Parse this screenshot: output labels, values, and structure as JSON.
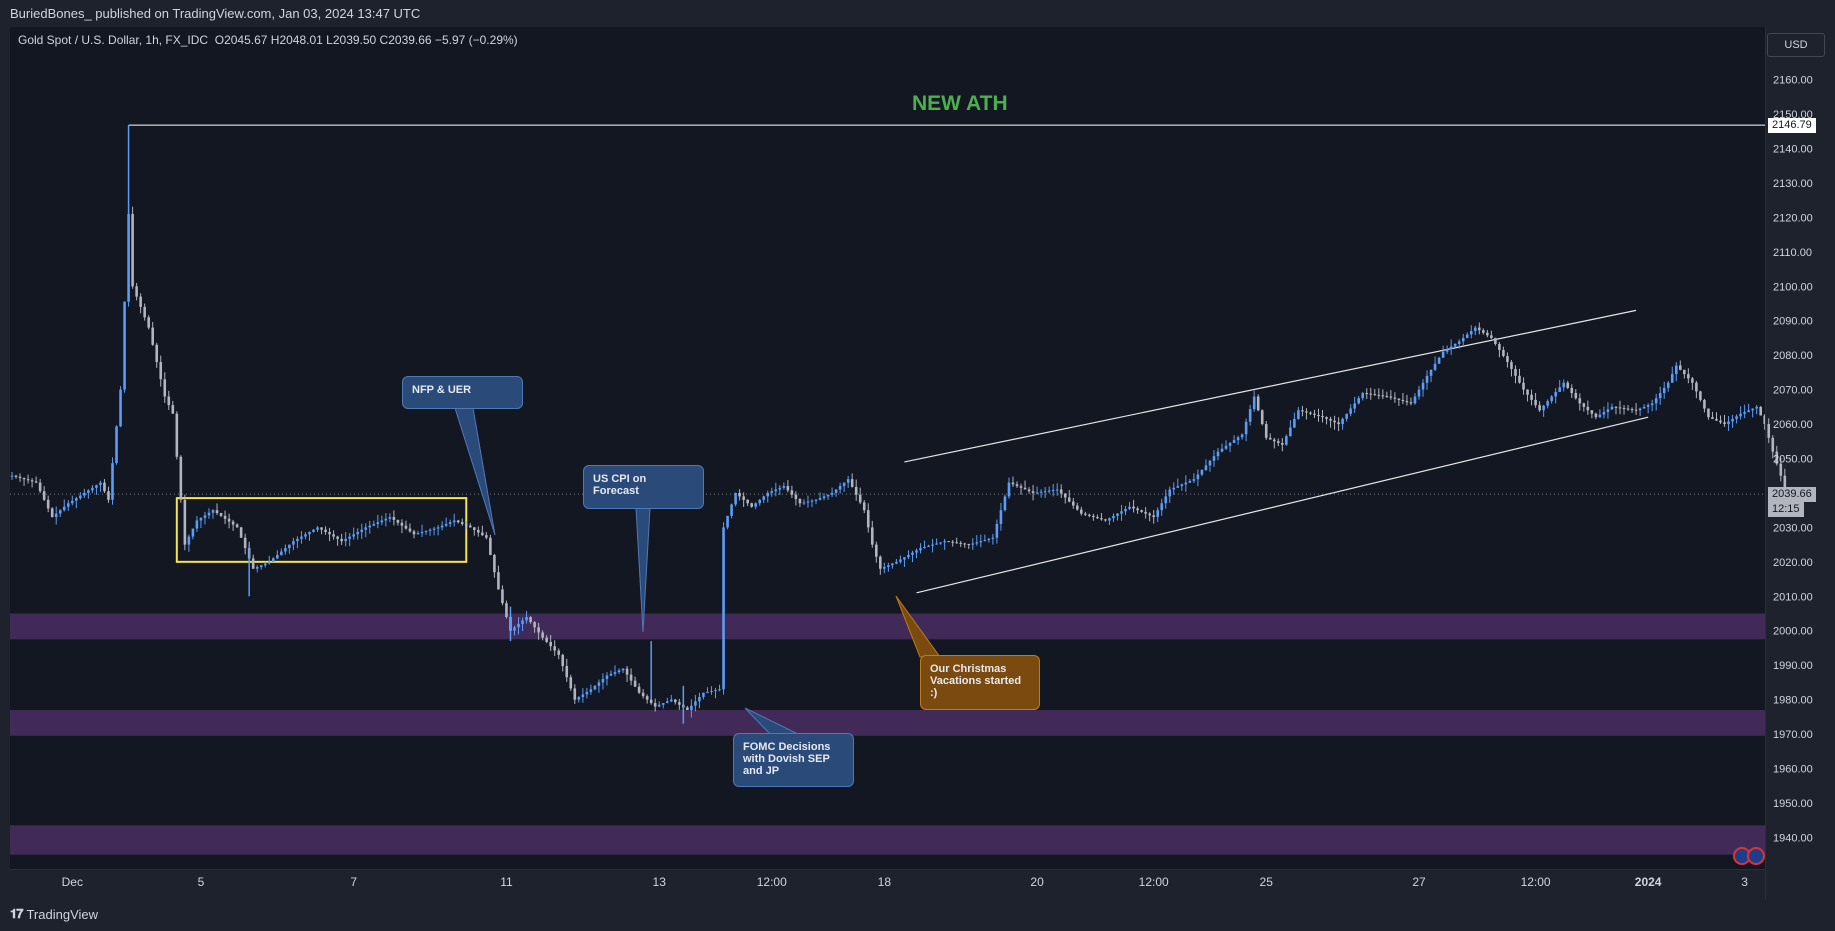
{
  "header": {
    "publish_info": "BuriedBones_ published on TradingView.com, Jan 03, 2024 13:47 UTC"
  },
  "legend": {
    "symbol": "Gold Spot / U.S. Dollar, 1h, FX_IDC",
    "ohlc": "O2045.67  H2048.01  L2039.50  C2039.66  −5.97 (−0.29%)"
  },
  "currency_button": "USD",
  "annotations": {
    "ath": "NEW ATH",
    "nfp": "NFP & UER",
    "cpi": "US CPI on Forecast",
    "fomc": "FOMC Decisions with Dovish SEP and JP",
    "christmas": "Our Christmas Vacations started :)"
  },
  "price_tags": {
    "ath_price": "2146.79",
    "last_price": "2039.66",
    "countdown": "12:15"
  },
  "brand": "TradingView",
  "colors": {
    "background": "#131722",
    "frame": "#1e222d",
    "candle": "#5b9cf6",
    "zone": "#4a2e62",
    "consolidation_box": "#f5e44b",
    "ath_text": "#4caf50",
    "grid_text": "#d1d4dc"
  },
  "chart_data": {
    "type": "candlestick-line",
    "symbol": "XAUUSD",
    "timeframe": "1h",
    "ylim": [
      1933,
      2167
    ],
    "yticks": [
      1940,
      1950,
      1960,
      1970,
      1980,
      1990,
      2000,
      2010,
      2020,
      2030,
      2040,
      2050,
      2060,
      2070,
      2080,
      2090,
      2100,
      2110,
      2120,
      2130,
      2140,
      2150,
      2160
    ],
    "ytick_labels": [
      "1940.00",
      "1950.00",
      "1960.00",
      "1970.00",
      "1980.00",
      "1990.00",
      "2000.00",
      "2010.00",
      "2020.00",
      "2030.00",
      "2040.00",
      "2050.00",
      "2060.00",
      "2070.00",
      "2080.00",
      "2090.00",
      "2100.00",
      "2110.00",
      "2120.00",
      "2130.00",
      "2140.00",
      "2150.00",
      "2160.00"
    ],
    "xticks": [
      {
        "label": "Dec",
        "bar": 15
      },
      {
        "label": "5",
        "bar": 47
      },
      {
        "label": "7",
        "bar": 85
      },
      {
        "label": "11",
        "bar": 123
      },
      {
        "label": "13",
        "bar": 161
      },
      {
        "label": "12:00",
        "bar": 189
      },
      {
        "label": "18",
        "bar": 217
      },
      {
        "label": "20",
        "bar": 255
      },
      {
        "label": "12:00",
        "bar": 284
      },
      {
        "label": "25",
        "bar": 312
      },
      {
        "label": "27",
        "bar": 350
      },
      {
        "label": "12:00",
        "bar": 379
      },
      {
        "label": "2024",
        "bar": 407
      },
      {
        "label": "3",
        "bar": 431
      }
    ],
    "bars_visible": 442,
    "path": [
      [
        0,
        2045
      ],
      [
        6,
        2043
      ],
      [
        10,
        2033
      ],
      [
        14,
        2037
      ],
      [
        18,
        2040
      ],
      [
        22,
        2043
      ],
      [
        24,
        2038
      ],
      [
        27,
        2070
      ],
      [
        29,
        2121
      ],
      [
        30,
        2100
      ],
      [
        34,
        2088
      ],
      [
        38,
        2068
      ],
      [
        40,
        2063
      ],
      [
        42,
        2038
      ],
      [
        43,
        2025
      ],
      [
        46,
        2032
      ],
      [
        50,
        2035
      ],
      [
        56,
        2030
      ],
      [
        60,
        2018
      ],
      [
        64,
        2020
      ],
      [
        70,
        2026
      ],
      [
        76,
        2030
      ],
      [
        82,
        2026
      ],
      [
        88,
        2030
      ],
      [
        94,
        2033
      ],
      [
        100,
        2028
      ],
      [
        106,
        2030
      ],
      [
        110,
        2032
      ],
      [
        114,
        2030
      ],
      [
        118,
        2027
      ],
      [
        121,
        2012
      ],
      [
        124,
        2000
      ],
      [
        128,
        2004
      ],
      [
        132,
        1998
      ],
      [
        136,
        1993
      ],
      [
        140,
        1980
      ],
      [
        144,
        1983
      ],
      [
        148,
        1987
      ],
      [
        152,
        1989
      ],
      [
        156,
        1982
      ],
      [
        160,
        1978
      ],
      [
        164,
        1980
      ],
      [
        168,
        1977
      ],
      [
        172,
        1982
      ],
      [
        176,
        1983
      ],
      [
        177,
        2030
      ],
      [
        180,
        2040
      ],
      [
        184,
        2036
      ],
      [
        188,
        2040
      ],
      [
        192,
        2042
      ],
      [
        196,
        2037
      ],
      [
        200,
        2038
      ],
      [
        204,
        2040
      ],
      [
        208,
        2044
      ],
      [
        212,
        2035
      ],
      [
        214,
        2025
      ],
      [
        216,
        2018
      ],
      [
        220,
        2020
      ],
      [
        226,
        2024
      ],
      [
        232,
        2026
      ],
      [
        238,
        2025
      ],
      [
        244,
        2027
      ],
      [
        248,
        2043
      ],
      [
        254,
        2040
      ],
      [
        260,
        2041
      ],
      [
        266,
        2034
      ],
      [
        272,
        2032
      ],
      [
        278,
        2036
      ],
      [
        284,
        2033
      ],
      [
        288,
        2041
      ],
      [
        294,
        2044
      ],
      [
        300,
        2052
      ],
      [
        306,
        2057
      ],
      [
        309,
        2068
      ],
      [
        312,
        2056
      ],
      [
        316,
        2054
      ],
      [
        320,
        2064
      ],
      [
        326,
        2062
      ],
      [
        330,
        2060
      ],
      [
        336,
        2069
      ],
      [
        342,
        2068
      ],
      [
        348,
        2066
      ],
      [
        352,
        2074
      ],
      [
        356,
        2081
      ],
      [
        360,
        2084
      ],
      [
        364,
        2088
      ],
      [
        368,
        2085
      ],
      [
        372,
        2078
      ],
      [
        376,
        2070
      ],
      [
        380,
        2064
      ],
      [
        386,
        2072
      ],
      [
        390,
        2066
      ],
      [
        394,
        2062
      ],
      [
        398,
        2065
      ],
      [
        404,
        2064
      ],
      [
        408,
        2066
      ],
      [
        412,
        2072
      ],
      [
        414,
        2077
      ],
      [
        418,
        2072
      ],
      [
        422,
        2062
      ],
      [
        426,
        2060
      ],
      [
        430,
        2063
      ],
      [
        434,
        2065
      ],
      [
        436,
        2060
      ],
      [
        438,
        2052
      ],
      [
        440,
        2045
      ],
      [
        441,
        2039.66
      ]
    ],
    "spikes": [
      {
        "bar": 29,
        "high": 2146.79,
        "low": 2100
      },
      {
        "bar": 124,
        "high": 2007,
        "low": 1997
      },
      {
        "bar": 159,
        "high": 1997,
        "low": 1980
      },
      {
        "bar": 167,
        "high": 1984,
        "low": 1973
      },
      {
        "bar": 59,
        "high": 2025,
        "low": 2010
      }
    ],
    "ath_line": {
      "price": 2146.79,
      "from_bar": 29
    },
    "last_price_line": 2039.66,
    "zones": [
      {
        "low": 1997.5,
        "high": 2005
      },
      {
        "low": 1969.5,
        "high": 1977
      },
      {
        "low": 1935,
        "high": 1943.5
      }
    ],
    "consolidation_box": {
      "from_bar": 41,
      "to_bar": 113,
      "low": 2020,
      "high": 2038.5
    },
    "channel": [
      {
        "from": [
          222,
          2049
        ],
        "to": [
          404,
          2093
        ]
      },
      {
        "from": [
          225,
          2011
        ],
        "to": [
          407,
          2062
        ]
      }
    ]
  }
}
